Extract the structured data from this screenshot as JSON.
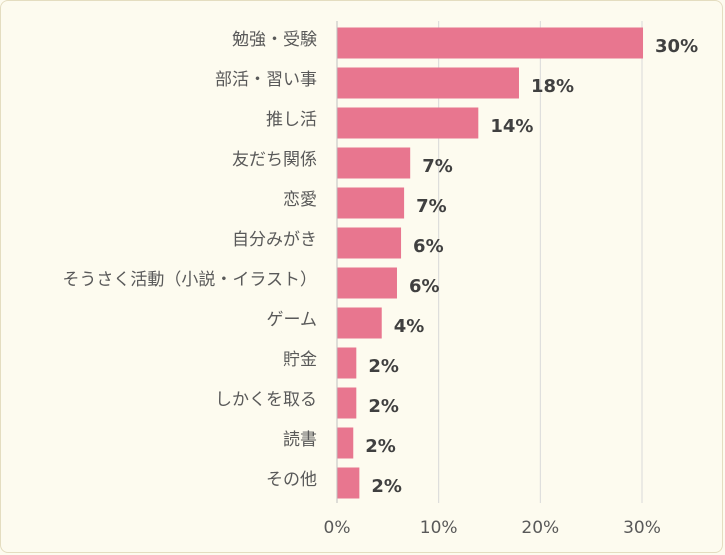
{
  "chart_data": {
    "type": "bar",
    "orientation": "horizontal",
    "title": "",
    "xlabel": "",
    "ylabel": "",
    "categories": [
      "勉強・受験",
      "部活・習い事",
      "推し活",
      "友だち関係",
      "恋愛",
      "自分みがき",
      "そうさく活動（小説・イラスト）",
      "ゲーム",
      "貯金",
      "しかくを取る",
      "読書",
      "その他"
    ],
    "values": [
      30.1,
      17.9,
      13.9,
      7.2,
      6.6,
      6.3,
      5.9,
      4.4,
      1.9,
      1.9,
      1.6,
      2.2
    ],
    "value_labels": [
      "30%",
      "18%",
      "14%",
      "7%",
      "7%",
      "6%",
      "6%",
      "4%",
      "2%",
      "2%",
      "2%",
      "2%"
    ],
    "xlim": [
      0,
      30
    ],
    "x_ticks": [
      0,
      10,
      20,
      30
    ],
    "x_tick_labels": [
      "0%",
      "10%",
      "20%",
      "30%"
    ],
    "grid": true,
    "legend": "none",
    "bar_color": "#e8768f",
    "background_color": "#fdfbef"
  }
}
